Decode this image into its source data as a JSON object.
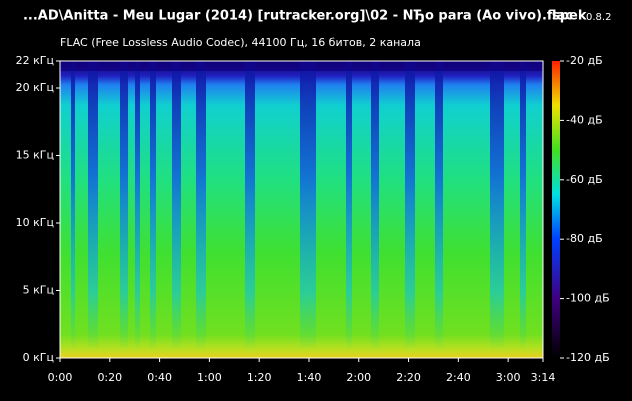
{
  "chart_data": {
    "type": "spectrogram",
    "title": "...AD\\Anitta - Meu Lugar (2014) [rutracker.org]\\02 - NЂo para (Ao vivo).flac",
    "app_name": "spek",
    "app_version": "0.8.2",
    "subtitle": "FLAC (Free Lossless Audio Codec), 44100 Гц, 16 битов, 2 канала",
    "xlim": [
      0,
      194
    ],
    "xticks": [
      {
        "value": 0,
        "label": "0:00"
      },
      {
        "value": 20,
        "label": "0:20"
      },
      {
        "value": 40,
        "label": "0:40"
      },
      {
        "value": 60,
        "label": "1:00"
      },
      {
        "value": 80,
        "label": "1:20"
      },
      {
        "value": 100,
        "label": "1:40"
      },
      {
        "value": 120,
        "label": "2:00"
      },
      {
        "value": 140,
        "label": "2:20"
      },
      {
        "value": 160,
        "label": "2:40"
      },
      {
        "value": 180,
        "label": "3:00"
      },
      {
        "value": 194,
        "label": "3:14"
      }
    ],
    "ylim": [
      0,
      22
    ],
    "yticks": [
      {
        "value": 0,
        "label": "0 кГц"
      },
      {
        "value": 5,
        "label": "5 кГц"
      },
      {
        "value": 10,
        "label": "10 кГц"
      },
      {
        "value": 15,
        "label": "15 кГц"
      },
      {
        "value": 20,
        "label": "20 кГц"
      },
      {
        "value": 22,
        "label": "22 кГц"
      }
    ],
    "colorbar_lim": [
      -120,
      -20
    ],
    "colorbar_ticks": [
      {
        "value": -20,
        "label": "-20 дБ"
      },
      {
        "value": -40,
        "label": "-40 дБ"
      },
      {
        "value": -60,
        "label": "-60 дБ"
      },
      {
        "value": -80,
        "label": "-80 дБ"
      },
      {
        "value": -100,
        "label": "-100 дБ"
      },
      {
        "value": -120,
        "label": "-120 дБ"
      }
    ]
  }
}
